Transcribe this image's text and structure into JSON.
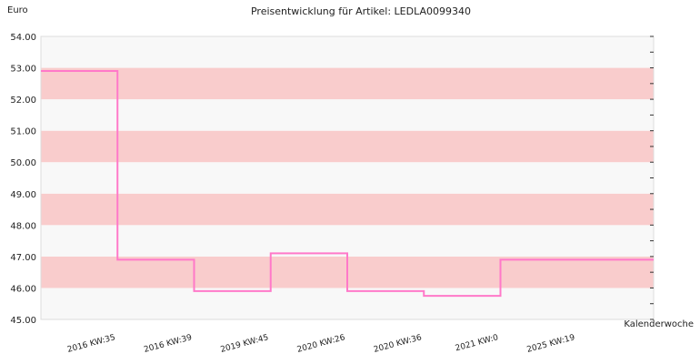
{
  "chart_data": {
    "type": "line",
    "step": true,
    "title": "Preisentwicklung für Artikel: LEDLA0099340",
    "ylabel": "Euro",
    "xlabel": "Kalenderwoche",
    "ylim": [
      45.0,
      54.0
    ],
    "yticks": [
      "45.00",
      "46.00",
      "47.00",
      "48.00",
      "49.00",
      "50.00",
      "51.00",
      "52.00",
      "53.00",
      "54.00"
    ],
    "categories": [
      "2016 KW:35",
      "2016 KW:39",
      "2019 KW:45",
      "2020 KW:26",
      "2020 KW:36",
      "2021 KW:0",
      "2025 KW:19"
    ],
    "series": [
      {
        "values": [
          52.9,
          46.9,
          45.9,
          47.1,
          45.9,
          45.75,
          46.9
        ],
        "color": "#ff79c9"
      }
    ],
    "band_colors": [
      "#f8f8f8",
      "#f9cccc"
    ],
    "grid": false,
    "legend": "none"
  }
}
